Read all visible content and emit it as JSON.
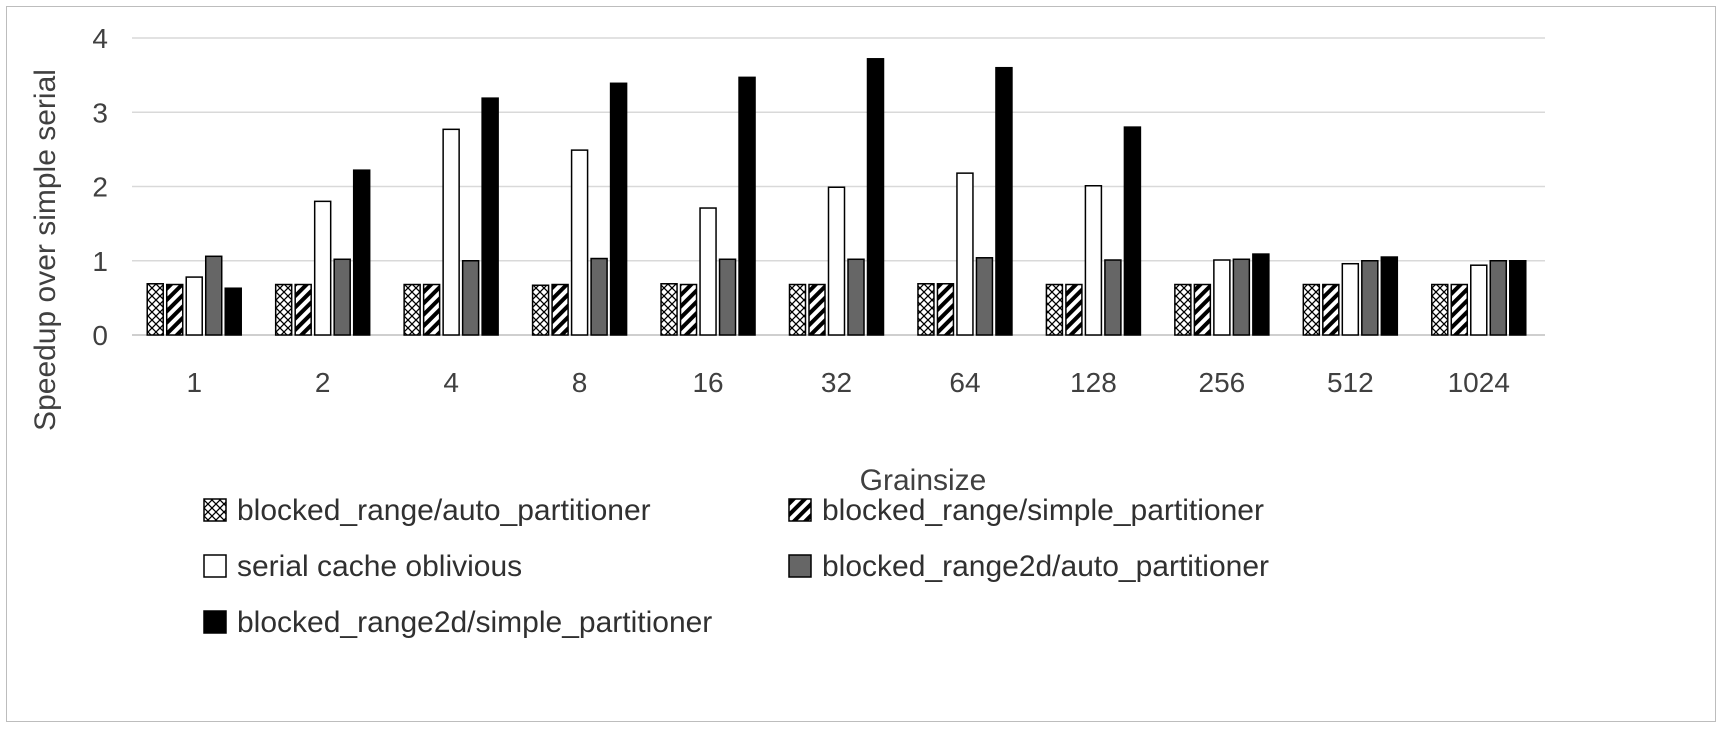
{
  "chart_data": {
    "type": "bar",
    "title": "",
    "xlabel": "Grainsize",
    "ylabel": "Speedup over simple serial",
    "ylim": [
      0,
      4
    ],
    "yticks": [
      "0",
      "1",
      "2",
      "3",
      "4"
    ],
    "grid": true,
    "legend_position": "bottom",
    "categories": [
      "1",
      "2",
      "4",
      "8",
      "16",
      "32",
      "64",
      "128",
      "256",
      "512",
      "1024"
    ],
    "series": [
      {
        "name": "blocked_range/auto_partitioner",
        "fill": "crosshatch",
        "values": [
          0.69,
          0.68,
          0.68,
          0.67,
          0.69,
          0.68,
          0.69,
          0.68,
          0.68,
          0.68,
          0.68
        ]
      },
      {
        "name": "blocked_range/simple_partitioner",
        "fill": "diagonal",
        "values": [
          0.68,
          0.68,
          0.68,
          0.68,
          0.68,
          0.68,
          0.69,
          0.68,
          0.68,
          0.68,
          0.68
        ]
      },
      {
        "name": "serial cache oblivious",
        "fill": "white",
        "values": [
          0.78,
          1.8,
          2.77,
          2.49,
          1.71,
          1.99,
          2.18,
          2.01,
          1.01,
          0.96,
          0.94
        ]
      },
      {
        "name": "blocked_range2d/auto_partitioner",
        "fill": "gray",
        "values": [
          1.06,
          1.02,
          1.0,
          1.03,
          1.02,
          1.02,
          1.04,
          1.01,
          1.02,
          1.0,
          1.0
        ]
      },
      {
        "name": "blocked_range2d/simple_partitioner",
        "fill": "black",
        "values": [
          0.63,
          2.22,
          3.19,
          3.39,
          3.47,
          3.72,
          3.6,
          2.8,
          1.09,
          1.05,
          1.0
        ]
      }
    ]
  },
  "colors": {
    "gray_bar": "#666666",
    "black_bar": "#000000",
    "gridline": "#d9d9d9",
    "axis_text": "#404040"
  }
}
